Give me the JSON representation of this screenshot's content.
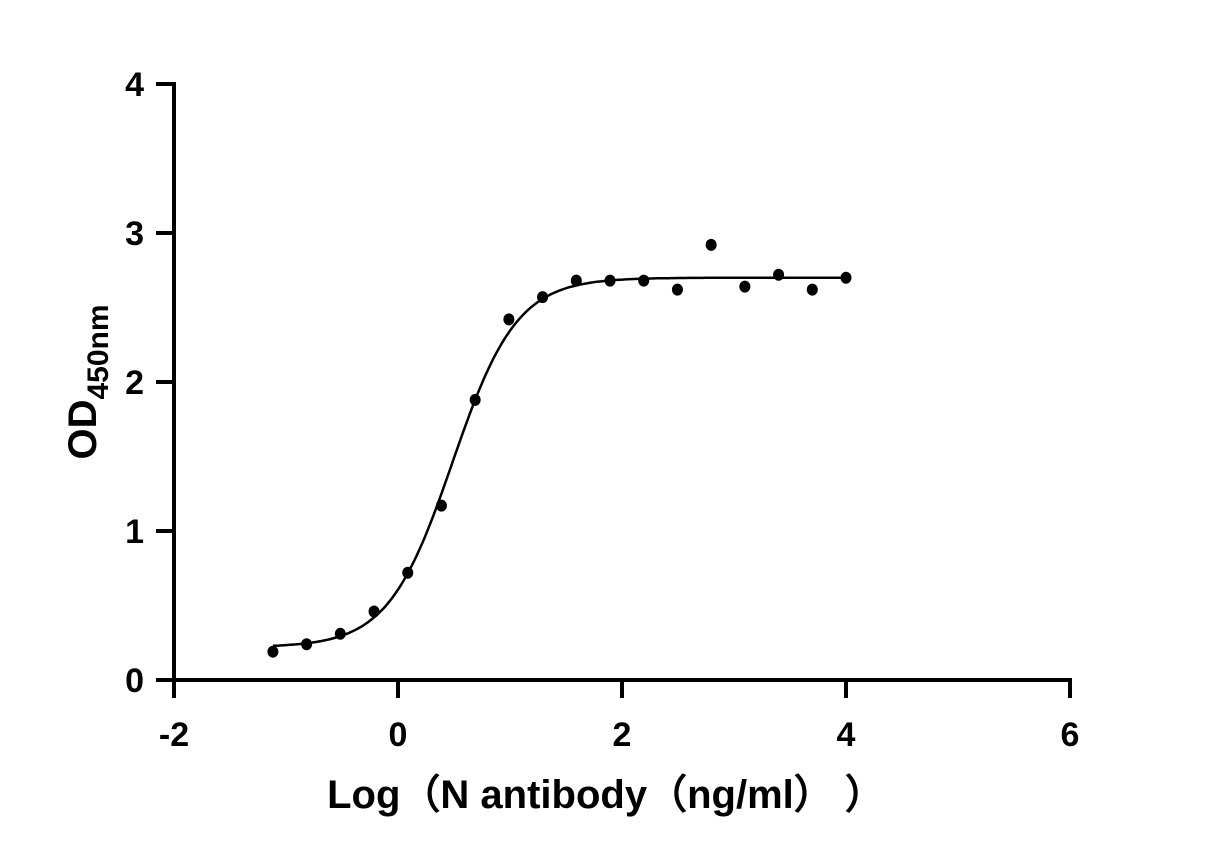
{
  "chart_data": {
    "type": "scatter",
    "title": "",
    "xlabel": "Log（N antibody（ng/ml）  ）",
    "ylabel": {
      "main": "OD",
      "subscript": "450nm"
    },
    "xlim": [
      -2,
      6
    ],
    "ylim": [
      0,
      4
    ],
    "xticks": [
      "-2",
      "0",
      "2",
      "4",
      "6"
    ],
    "yticks": [
      "0",
      "1",
      "2",
      "3",
      "4"
    ],
    "grid": false,
    "legend": "none",
    "colors": {
      "points": "#000000",
      "curve": "#000000"
    },
    "x": [
      -1.117,
      -0.816,
      -0.515,
      -0.214,
      0.087,
      0.388,
      0.689,
      0.99,
      1.291,
      1.592,
      1.893,
      2.194,
      2.495,
      2.796,
      3.097,
      3.398,
      3.699,
      4.0
    ],
    "y": [
      0.19,
      0.24,
      0.31,
      0.46,
      0.72,
      1.17,
      1.88,
      2.42,
      2.57,
      2.68,
      2.68,
      2.68,
      2.62,
      2.92,
      2.64,
      2.72,
      2.62,
      2.7
    ],
    "fit": {
      "model": "4PL sigmoidal",
      "bottom": 0.22,
      "top": 2.7,
      "logEC50": 0.486,
      "hill": 1.51,
      "x_range": [
        -1.117,
        4.0
      ]
    }
  }
}
